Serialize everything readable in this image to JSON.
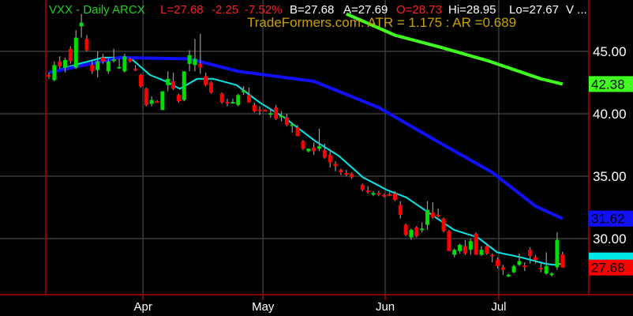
{
  "header": {
    "symbol": "VXX - Daily  ARCX",
    "last": "L=27.68",
    "change": "-2.25",
    "change_pct": "-7.52%",
    "bid": "B=27.68",
    "ask": "A=27.69",
    "open": "O=28.73",
    "high": "Hi=28.95",
    "low": "Lo=27.67",
    "volume": "V ..."
  },
  "watermark": "TradeFormers.com: ATR  = 1.175 :  AR =0.689",
  "colors": {
    "up": "#00e000",
    "down": "#ff0000",
    "fast_ma": "#00e8e8",
    "mid_ma": "#1010ff",
    "slow_ma": "#40ff20",
    "grid": "#3a3a3a",
    "frame": "#b00000",
    "symbol": "#20d020",
    "watermark": "#c9a100"
  },
  "chart_data": {
    "type": "candlestick",
    "ylim": [
      26,
      48.5
    ],
    "yticks": [
      45,
      40,
      35,
      30
    ],
    "ytick_labels": [
      "45.00",
      "40.00",
      "35.00",
      "30.00"
    ],
    "xticks": [
      {
        "label": "Apr",
        "bar": 17.4
      },
      {
        "label": "May",
        "bar": 39.6
      },
      {
        "label": "Jun",
        "bar": 62.2
      },
      {
        "label": "Jul",
        "bar": 83.2
      }
    ],
    "grid": true,
    "candles_ohlc": [
      [
        43.1,
        43.3,
        42.8,
        43.0
      ],
      [
        42.7,
        44.2,
        42.6,
        43.9
      ],
      [
        44.2,
        44.6,
        43.6,
        43.8
      ],
      [
        43.7,
        44.5,
        43.3,
        44.3
      ],
      [
        45.2,
        45.4,
        44.0,
        44.2
      ],
      [
        43.7,
        46.7,
        43.6,
        46.1
      ],
      [
        47.0,
        48.0,
        46.1,
        47.3
      ],
      [
        46.0,
        46.3,
        45.0,
        45.1
      ],
      [
        43.9,
        44.2,
        43.2,
        43.4
      ],
      [
        43.5,
        45.0,
        42.9,
        44.2
      ],
      [
        44.5,
        44.8,
        44.0,
        44.2
      ],
      [
        43.4,
        44.4,
        43.2,
        44.2
      ],
      [
        44.3,
        45.2,
        44.1,
        44.35
      ],
      [
        43.7,
        44.4,
        43.6,
        43.75
      ],
      [
        43.4,
        44.8,
        43.3,
        44.6
      ],
      [
        44.4,
        44.5,
        44.1,
        44.2
      ],
      [
        43.6,
        43.9,
        43.4,
        43.5
      ],
      [
        43.1,
        43.2,
        42.1,
        42.2
      ],
      [
        42.0,
        42.1,
        40.6,
        40.7
      ],
      [
        40.8,
        41.4,
        40.6,
        41.1
      ],
      [
        41.0,
        41.1,
        40.9,
        40.95
      ],
      [
        40.3,
        41.8,
        40.3,
        41.8
      ],
      [
        42.3,
        43.4,
        41.8,
        42.8
      ],
      [
        42.6,
        43.3,
        41.9,
        42.0
      ],
      [
        41.5,
        41.6,
        40.9,
        41.0
      ],
      [
        41.1,
        43.4,
        41.0,
        43.4
      ],
      [
        44.0,
        45.1,
        43.4,
        44.7
      ],
      [
        43.9,
        46.0,
        43.4,
        44.4
      ],
      [
        44.0,
        46.4,
        43.2,
        43.7
      ],
      [
        43.0,
        43.3,
        42.2,
        42.3
      ],
      [
        42.5,
        42.6,
        41.6,
        41.7
      ],
      null,
      [
        41.6,
        41.7,
        40.8,
        40.9
      ],
      [
        40.95,
        41.2,
        40.6,
        40.9
      ],
      [
        40.9,
        41.2,
        40.8,
        40.95
      ],
      [
        40.7,
        41.6,
        40.6,
        41.5
      ],
      [
        41.8,
        42.2,
        41.5,
        41.85
      ],
      [
        41.5,
        42.1,
        40.9,
        40.9
      ],
      [
        40.7,
        40.9,
        40.1,
        40.2
      ],
      [
        40.35,
        40.6,
        39.9,
        40.3
      ],
      [
        40.3,
        40.35,
        40.2,
        40.25
      ],
      [
        40.0,
        40.4,
        39.7,
        40.05
      ],
      [
        40.5,
        40.7,
        39.5,
        39.6
      ],
      [
        39.8,
        40.2,
        39.4,
        39.85
      ],
      [
        39.7,
        40.0,
        39.0,
        39.1
      ],
      [
        39.1,
        39.3,
        38.5,
        39.15
      ],
      [
        38.9,
        39.1,
        38.2,
        38.2
      ],
      [
        37.8,
        37.9,
        37.1,
        37.2
      ],
      [
        37.0,
        37.2,
        36.9,
        37.2
      ],
      [
        37.3,
        37.7,
        36.7,
        37.0
      ],
      [
        37.2,
        38.8,
        37.0,
        37.4
      ],
      [
        37.1,
        37.6,
        36.4,
        36.5
      ],
      [
        36.7,
        37.0,
        35.7,
        36.1
      ],
      [
        36.0,
        36.2,
        35.4,
        35.8
      ],
      [
        35.5,
        35.6,
        35.1,
        35.3
      ],
      [
        35.25,
        35.5,
        35.0,
        35.2
      ],
      [
        35.2,
        35.3,
        34.8,
        34.9
      ],
      null,
      [
        34.3,
        34.4,
        33.8,
        33.9
      ],
      [
        33.85,
        34.2,
        33.6,
        33.8
      ],
      [
        33.6,
        33.8,
        33.4,
        33.65
      ],
      [
        33.65,
        33.8,
        33.4,
        33.6
      ],
      [
        33.5,
        33.6,
        33.3,
        33.4
      ],
      [
        33.55,
        33.7,
        33.4,
        33.5
      ],
      [
        33.6,
        33.8,
        33.0,
        33.1
      ],
      [
        32.7,
        33.0,
        31.6,
        31.9
      ],
      [
        31.1,
        31.2,
        30.2,
        30.3
      ],
      [
        30.1,
        30.8,
        29.9,
        30.7
      ],
      [
        30.9,
        31.0,
        30.1,
        30.2
      ],
      [
        30.75,
        31.3,
        30.5,
        30.8
      ],
      [
        31.1,
        33.0,
        30.7,
        32.3
      ],
      [
        32.1,
        32.9,
        31.6,
        31.7
      ],
      [
        31.9,
        32.4,
        31.7,
        31.8
      ],
      [
        31.6,
        31.7,
        30.5,
        30.6
      ],
      [
        30.6,
        30.7,
        29.0,
        29.0
      ],
      [
        28.7,
        29.2,
        28.5,
        29.1
      ],
      [
        29.0,
        29.6,
        28.8,
        29.5
      ],
      [
        29.4,
        29.9,
        28.7,
        28.8
      ],
      [
        29.1,
        30.0,
        28.7,
        29.8
      ],
      [
        30.4,
        30.5,
        28.7,
        28.7
      ],
      [
        28.7,
        29.4,
        28.6,
        29.1
      ],
      [
        29.4,
        29.5,
        28.7,
        28.8
      ],
      [
        28.7,
        28.8,
        28.1,
        28.6
      ],
      [
        28.3,
        28.5,
        27.6,
        27.8
      ],
      [
        27.7,
        27.9,
        27.1,
        27.5
      ],
      [
        27.05,
        27.2,
        26.9,
        27.1
      ],
      [
        27.3,
        27.9,
        27.2,
        27.8
      ],
      [
        27.9,
        28.8,
        27.8,
        28.2
      ],
      [
        27.85,
        28.1,
        27.4,
        27.75
      ],
      [
        29.1,
        29.3,
        28.0,
        28.6
      ],
      [
        28.5,
        28.7,
        28.0,
        28.3
      ],
      [
        27.65,
        28.0,
        27.3,
        27.6
      ],
      [
        27.2,
        28.9,
        27.1,
        27.8
      ],
      [
        27.1,
        27.3,
        26.95,
        27.2
      ],
      [
        27.7,
        30.5,
        27.5,
        29.9
      ],
      [
        28.73,
        28.95,
        27.67,
        27.68
      ]
    ],
    "moving_averages": [
      {
        "color": "cyan",
        "points": [
          [
            0,
            43.3
          ],
          [
            5.5,
            44.0
          ],
          [
            10,
            44.5
          ],
          [
            15,
            44.5
          ],
          [
            18.7,
            43.1
          ],
          [
            21.6,
            42.6
          ],
          [
            24.2,
            42.0
          ],
          [
            27.4,
            42.8
          ],
          [
            30.4,
            42.8
          ],
          [
            34.7,
            42.3
          ],
          [
            39,
            40.9
          ],
          [
            43.5,
            39.7
          ],
          [
            49.3,
            37.8
          ],
          [
            53.7,
            36.6
          ],
          [
            58.1,
            34.9
          ],
          [
            62.5,
            33.9
          ],
          [
            66.1,
            33.3
          ],
          [
            70.5,
            32.0
          ],
          [
            74.9,
            30.7
          ],
          [
            79.3,
            30.1
          ],
          [
            82.9,
            28.9
          ],
          [
            87.3,
            28.5
          ],
          [
            91.7,
            28.0
          ],
          [
            93.3,
            27.9
          ],
          [
            95,
            28.0
          ]
        ]
      },
      {
        "color": "blue",
        "last_label": "31.62",
        "points": [
          [
            0,
            43.3
          ],
          [
            13,
            44.5
          ],
          [
            26,
            44.4
          ],
          [
            35,
            43.4
          ],
          [
            49,
            42.6
          ],
          [
            61,
            40.5
          ],
          [
            71,
            38.0
          ],
          [
            82,
            35.3
          ],
          [
            90,
            32.6
          ],
          [
            95,
            31.6
          ]
        ]
      },
      {
        "color": "green",
        "last_label": "42.38",
        "points": [
          [
            55,
            48.0
          ],
          [
            64,
            46.3
          ],
          [
            72.7,
            45.3
          ],
          [
            81.5,
            44.2
          ],
          [
            91,
            42.8
          ],
          [
            95,
            42.38
          ]
        ]
      }
    ],
    "last_price_label": "27.68"
  }
}
